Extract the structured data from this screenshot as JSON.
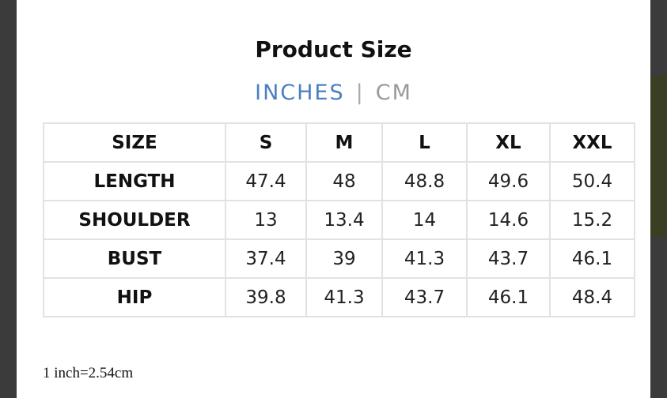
{
  "header": {
    "title": "Product Size"
  },
  "units": {
    "options": [
      "INCHES",
      "CM"
    ],
    "selected": "INCHES"
  },
  "table": {
    "columns": [
      "SIZE",
      "S",
      "M",
      "L",
      "XL",
      "XXL"
    ],
    "rows": [
      [
        "LENGTH",
        47.4,
        48,
        48.8,
        49.6,
        50.4
      ],
      [
        "SHOULDER",
        13,
        13.4,
        14,
        14.6,
        15.2
      ],
      [
        "BUST",
        37.4,
        39,
        41.3,
        43.7,
        46.1
      ],
      [
        "HIP",
        39.8,
        41.3,
        43.7,
        46.1,
        48.4
      ]
    ]
  },
  "footnote": "1 inch=2.54cm"
}
